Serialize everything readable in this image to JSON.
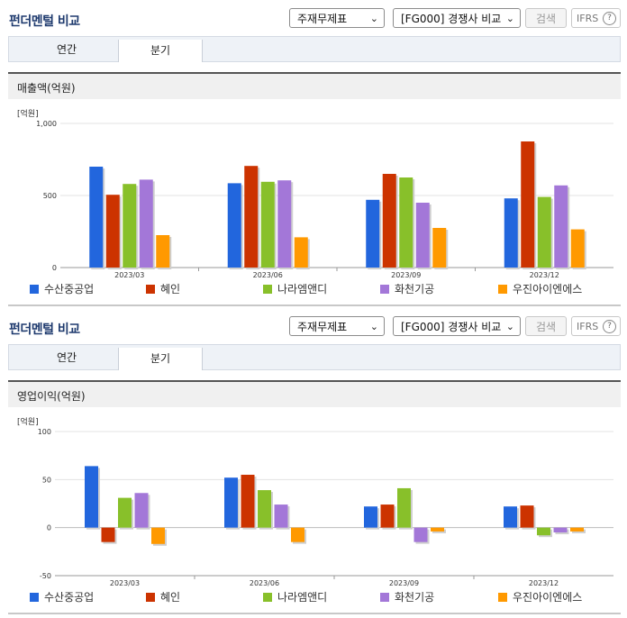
{
  "panels": [
    {
      "title": "펀더멘털 비교",
      "select_statement": "주재무제표",
      "select_compare": "[FG000] 경쟁사 비교",
      "search_label": "검색",
      "ifrs_label": "IFRS",
      "help_glyph": "?",
      "tabs": [
        "연간",
        "분기"
      ],
      "active_tab": "분기",
      "metric_label": "매출액(억원)",
      "unit_label": "[억원]"
    },
    {
      "title": "펀더멘털 비교",
      "select_statement": "주재무제표",
      "select_compare": "[FG000] 경쟁사 비교",
      "search_label": "검색",
      "ifrs_label": "IFRS",
      "help_glyph": "?",
      "tabs": [
        "연간",
        "분기"
      ],
      "active_tab": "분기",
      "metric_label": "영업이익(억원)",
      "unit_label": "[억원]"
    }
  ],
  "chart_data": [
    {
      "type": "bar",
      "categories": [
        "2023/03",
        "2023/06",
        "2023/09",
        "2023/12"
      ],
      "ylim": [
        0,
        1000
      ],
      "yticks": [
        "0",
        "500",
        "1,000"
      ],
      "ytick_values": [
        0,
        500,
        1000
      ],
      "legend": "bottom",
      "series": [
        {
          "name": "수산중공업",
          "color": "#2266dd",
          "values": [
            700,
            585,
            470,
            480
          ]
        },
        {
          "name": "혜인",
          "color": "#cc3300",
          "values": [
            505,
            705,
            650,
            875
          ]
        },
        {
          "name": "나라엠앤디",
          "color": "#88c02a",
          "values": [
            580,
            595,
            625,
            490
          ]
        },
        {
          "name": "화천기공",
          "color": "#a377d8",
          "values": [
            610,
            605,
            450,
            570
          ]
        },
        {
          "name": "우진아이엔에스",
          "color": "#ff9900",
          "values": [
            225,
            210,
            275,
            265
          ]
        }
      ]
    },
    {
      "type": "bar",
      "categories": [
        "2023/03",
        "2023/06",
        "2023/09",
        "2023/12"
      ],
      "ylim": [
        -50,
        100
      ],
      "yticks": [
        "-50",
        "0",
        "50",
        "100"
      ],
      "ytick_values": [
        -50,
        0,
        50,
        100
      ],
      "legend": "bottom",
      "series": [
        {
          "name": "수산중공업",
          "color": "#2266dd",
          "values": [
            64,
            52,
            22,
            22
          ]
        },
        {
          "name": "혜인",
          "color": "#cc3300",
          "values": [
            -15,
            55,
            24,
            23
          ]
        },
        {
          "name": "나라엠앤디",
          "color": "#88c02a",
          "values": [
            31,
            39,
            41,
            -8
          ]
        },
        {
          "name": "화천기공",
          "color": "#a377d8",
          "values": [
            36,
            24,
            -15,
            -5
          ]
        },
        {
          "name": "우진아이엔에스",
          "color": "#ff9900",
          "values": [
            -17,
            -15,
            -4,
            -4
          ]
        }
      ]
    }
  ]
}
